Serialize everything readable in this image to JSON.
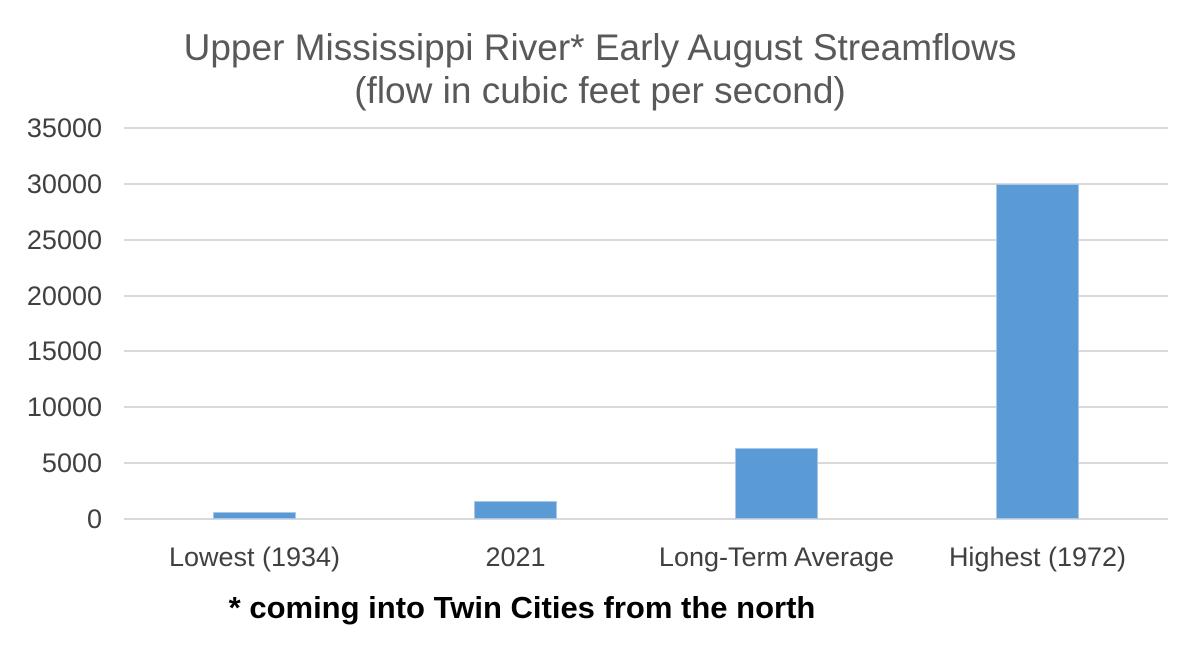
{
  "title": {
    "line1": "Upper Mississippi River* Early August Streamflows",
    "line2": "(flow in cubic feet per second)"
  },
  "footnote": "* coming into Twin Cities from the north",
  "chart_data": {
    "type": "bar",
    "title": "Upper Mississippi River* Early August Streamflows (flow in cubic feet per second)",
    "categories": [
      "Lowest (1934)",
      "2021",
      "Long-Term Average",
      "Highest (1972)"
    ],
    "values": [
      600,
      1600,
      6400,
      30000
    ],
    "xlabel": "",
    "ylabel": "",
    "ylim": [
      0,
      35000
    ],
    "yticks": [
      0,
      5000,
      10000,
      15000,
      20000,
      25000,
      30000,
      35000
    ],
    "grid": "horizontal-only",
    "legend": "none",
    "annotation": "* coming into Twin Cities from the north",
    "colors": {
      "bar_fill": "#5B9BD5",
      "bar_border": "#A9C7E8",
      "gridline": "#D9D9D9",
      "title_text": "#595959",
      "axis_text": "#404040",
      "footnote_text": "#000000",
      "background": "#FFFFFF"
    }
  }
}
